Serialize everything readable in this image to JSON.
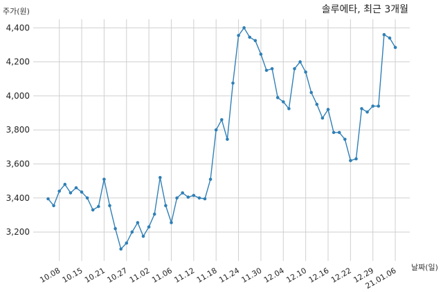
{
  "chart_data": {
    "type": "line",
    "title": "솔루에타, 최근 3개월",
    "ylabel": "주가(원)",
    "xlabel": "날짜(일)",
    "ylim": [
      3030,
      4450
    ],
    "grid": true,
    "series_color": "#2f7fb5",
    "yticks": [
      3200,
      3400,
      3600,
      3800,
      4000,
      4200,
      4400
    ],
    "ytick_labels": [
      "3,200",
      "3,400",
      "3,600",
      "3,800",
      "4,000",
      "4,200",
      "4,400"
    ],
    "xtick_labels": [
      "10.08",
      "10.15",
      "10.21",
      "10.27",
      "11.02",
      "11.06",
      "11.12",
      "11.18",
      "11.24",
      "11.30",
      "12.04",
      "12.10",
      "12.16",
      "12.22",
      "12.29",
      "21.01.06"
    ],
    "xtick_index": [
      2,
      6,
      10,
      14,
      18,
      22,
      26,
      30,
      34,
      38,
      42,
      46,
      50,
      54,
      58,
      62
    ],
    "values": [
      3395,
      3355,
      3440,
      3480,
      3430,
      3460,
      3435,
      3400,
      3330,
      3350,
      3510,
      3355,
      3220,
      3100,
      3135,
      3200,
      3255,
      3175,
      3230,
      3305,
      3520,
      3355,
      3255,
      3400,
      3430,
      3405,
      3415,
      3400,
      3395,
      3510,
      3800,
      3860,
      3745,
      4075,
      4355,
      4400,
      4345,
      4325,
      4245,
      4150,
      4160,
      3990,
      3965,
      3925,
      4160,
      4200,
      4140,
      4020,
      3950,
      3870,
      3920,
      3785,
      3785,
      3745,
      3620,
      3630,
      3925,
      3905,
      3940,
      3940,
      4360,
      4340,
      4285
    ]
  }
}
